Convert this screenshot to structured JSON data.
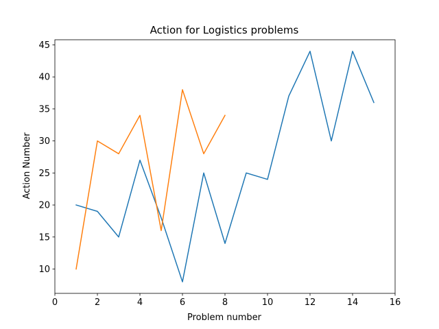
{
  "chart_data": {
    "type": "line",
    "title": "Action for Logistics problems",
    "xlabel": "Problem number",
    "ylabel": "Action Number",
    "xlim": [
      0,
      16
    ],
    "ylim": [
      6.2,
      45.8
    ],
    "xticks": [
      0,
      2,
      4,
      6,
      8,
      10,
      12,
      14,
      16
    ],
    "yticks": [
      10,
      15,
      20,
      25,
      30,
      35,
      40,
      45
    ],
    "grid": false,
    "legend": "none",
    "series": [
      {
        "color": "#1f77b4",
        "x": [
          1,
          2,
          3,
          4,
          5,
          6,
          7,
          8,
          9,
          10,
          11,
          12,
          13,
          14,
          15
        ],
        "y": [
          20,
          19,
          15,
          27,
          18,
          8,
          25,
          14,
          25,
          24,
          37,
          44,
          30,
          44,
          36
        ]
      },
      {
        "color": "#ff7f0e",
        "x": [
          1,
          2,
          3,
          4,
          5,
          6,
          7,
          8
        ],
        "y": [
          10,
          30,
          28,
          34,
          16,
          38,
          28,
          34
        ]
      }
    ]
  }
}
